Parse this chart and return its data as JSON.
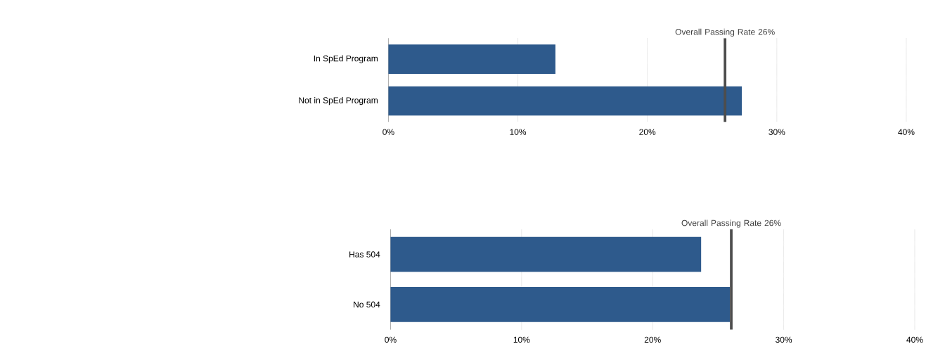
{
  "chart_data": [
    {
      "type": "bar",
      "orientation": "horizontal",
      "categories": [
        "In SpEd Program",
        "Not in SpEd Program"
      ],
      "values": [
        12.9,
        27.3
      ],
      "color": "#2e5a8c",
      "xlim": [
        0,
        40
      ],
      "xticks": [
        {
          "value": 0,
          "label": "0%"
        },
        {
          "value": 10,
          "label": "10%"
        },
        {
          "value": 20,
          "label": "20%"
        },
        {
          "value": 30,
          "label": "30%"
        },
        {
          "value": 40,
          "label": "40%"
        }
      ],
      "grid": "x",
      "ref_lines": [
        {
          "axis": "x",
          "value": 26,
          "label": "Overall Passing Rate 26%",
          "color": "#4d4d4d"
        }
      ]
    },
    {
      "type": "bar",
      "orientation": "horizontal",
      "categories": [
        "Has 504",
        "No 504"
      ],
      "values": [
        23.7,
        25.9
      ],
      "color": "#2e5a8c",
      "xlim": [
        0,
        40
      ],
      "xticks": [
        {
          "value": 0,
          "label": "0%"
        },
        {
          "value": 10,
          "label": "10%"
        },
        {
          "value": 20,
          "label": "20%"
        },
        {
          "value": 30,
          "label": "30%"
        },
        {
          "value": 40,
          "label": "40%"
        }
      ],
      "grid": "x",
      "ref_lines": [
        {
          "axis": "x",
          "value": 26,
          "label": "Overall Passing Rate 26%",
          "color": "#4d4d4d"
        }
      ]
    }
  ]
}
